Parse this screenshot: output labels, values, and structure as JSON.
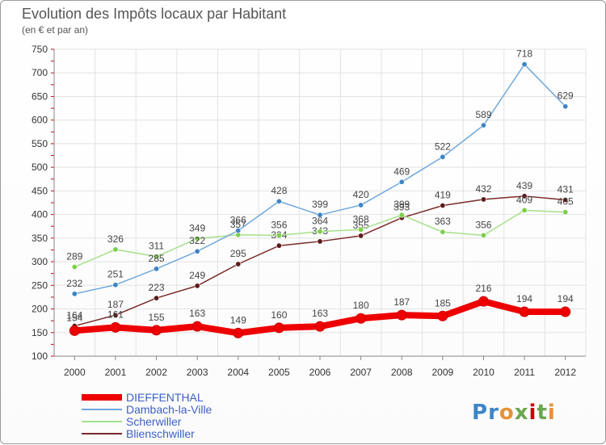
{
  "chart_data": {
    "type": "line",
    "title": "Evolution des Impôts locaux par Habitant",
    "subtitle": "(en € et par an)",
    "xlabel": "",
    "ylabel": "",
    "ylim": [
      100,
      750
    ],
    "yticks": [
      100,
      150,
      200,
      250,
      300,
      350,
      400,
      450,
      500,
      550,
      600,
      650,
      700,
      750
    ],
    "categories": [
      "2000",
      "2001",
      "2002",
      "2003",
      "2004",
      "2005",
      "2006",
      "2007",
      "2008",
      "2009",
      "2010",
      "2011",
      "2012"
    ],
    "grid": true,
    "legend_position": "bottom-left",
    "series": [
      {
        "name": "DIEFFENTHAL",
        "color": "#ee0000",
        "values": [
          154,
          161,
          155,
          163,
          149,
          160,
          163,
          180,
          187,
          185,
          216,
          194,
          194
        ],
        "labels": [
          "154",
          "161",
          "155",
          "163",
          "149",
          "160",
          "163",
          "180",
          "187",
          "185",
          "216",
          "194",
          "194"
        ]
      },
      {
        "name": "Dambach-la-Ville",
        "color": "#6fa8dc",
        "marker_color": "#3d85c6",
        "values": [
          232,
          251,
          285,
          322,
          366,
          428,
          399,
          420,
          469,
          522,
          589,
          718,
          629
        ],
        "labels": [
          "232",
          "251",
          "285",
          "322",
          "366",
          "428",
          "399",
          "420",
          "469",
          "522",
          "589",
          "718",
          "629"
        ]
      },
      {
        "name": "Scherwiller",
        "color": "#a6e08a",
        "marker_color": "#7ccf4a",
        "values": [
          289,
          326,
          311,
          349,
          357,
          356,
          364,
          368,
          399,
          363,
          356,
          409,
          405
        ],
        "labels": [
          "289",
          "326",
          "311",
          "349",
          "357",
          "356",
          "364",
          "368",
          "399",
          "363",
          "356",
          "409",
          "405"
        ]
      },
      {
        "name": "Blienschwiller",
        "color": "#7b2a2a",
        "marker_color": "#5c1a1a",
        "values": [
          164,
          187,
          223,
          249,
          295,
          334,
          343,
          355,
          393,
          419,
          432,
          439,
          431
        ],
        "labels": [
          "164",
          "187",
          "223",
          "249",
          "295",
          "334",
          "343",
          "355",
          "393",
          "419",
          "432",
          "439",
          "431"
        ]
      }
    ]
  },
  "logo": {
    "text": "Proxiti",
    "letters": [
      "P",
      "r",
      "o",
      "x",
      "i",
      "t",
      "i"
    ],
    "colors": [
      "#3d85c6",
      "#3d85c6",
      "#e69138",
      "#6aa84f",
      "#cc0000",
      "#6aa84f",
      "#e69138"
    ]
  }
}
